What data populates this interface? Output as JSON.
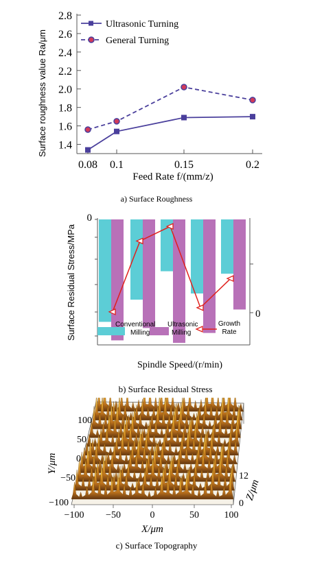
{
  "panel_a": {
    "caption": "a) Surface Roughness",
    "chart_data": {
      "type": "line",
      "x": [
        0.08,
        0.1,
        0.15,
        0.2
      ],
      "xticks": [
        "0.08",
        "0.1",
        "0.15",
        "0.2"
      ],
      "yticks": [
        "1.4",
        "1.6",
        "1.8",
        "2.0",
        "2.2",
        "2.4",
        "2.6",
        "2.8"
      ],
      "ylim": [
        1.3,
        2.8
      ],
      "xlabel": "Feed Rate f/(mm/z)",
      "ylabel": "Surface roughness value Ra/μm",
      "legend_position": "top-left",
      "series": [
        {
          "name": "Ultrasonic Turning",
          "values": [
            1.34,
            1.54,
            1.69,
            1.7
          ],
          "color": "#4a3f9c",
          "marker": "square",
          "line": "solid"
        },
        {
          "name": "General Turning",
          "values": [
            1.56,
            1.65,
            2.02,
            1.88
          ],
          "color": "#4a3f9c",
          "marker": "circle",
          "marker_fill": "#d23a5a",
          "line": "dashed"
        }
      ]
    }
  },
  "panel_b": {
    "caption": "b) Surface Residual Stress",
    "chart_data": {
      "type": "bar",
      "xlabel": "Spindle Speed/(r/min)",
      "ylabel": "Surface Residual Stress/MPa",
      "yticks_left": [
        "0"
      ],
      "yticks_right": [
        "0"
      ],
      "ylim": [
        -100,
        0
      ],
      "categories_count": 5,
      "series": [
        {
          "name": "Conventional Milling",
          "values": [
            -83,
            -65,
            -42,
            -60,
            -44
          ],
          "color": "#5ccdd6"
        },
        {
          "name": "Ultrasonic Milling",
          "values": [
            -98,
            -88,
            -100,
            -92,
            -73
          ],
          "color": "#b871b8"
        }
      ],
      "growth_rate": {
        "name": "Growth Rate",
        "values": [
          0.1,
          0.78,
          0.92,
          0.14,
          0.42
        ],
        "color": "#e0201c"
      }
    }
  },
  "panel_c": {
    "caption": "c) Surface Topography",
    "chart_data": {
      "type": "surface",
      "xlabel": "X/μm",
      "ylabel": "Y/μm",
      "zlabel": "Z/μm",
      "xticks": [
        "−100",
        "−50",
        "0",
        "50",
        "100"
      ],
      "yticks": [
        "100",
        "50",
        "0",
        "−50",
        "−100"
      ],
      "zticks": [
        "12",
        "0"
      ],
      "xlim": [
        -100,
        100
      ],
      "ylim": [
        -100,
        100
      ],
      "zlim": [
        0,
        12
      ]
    }
  }
}
